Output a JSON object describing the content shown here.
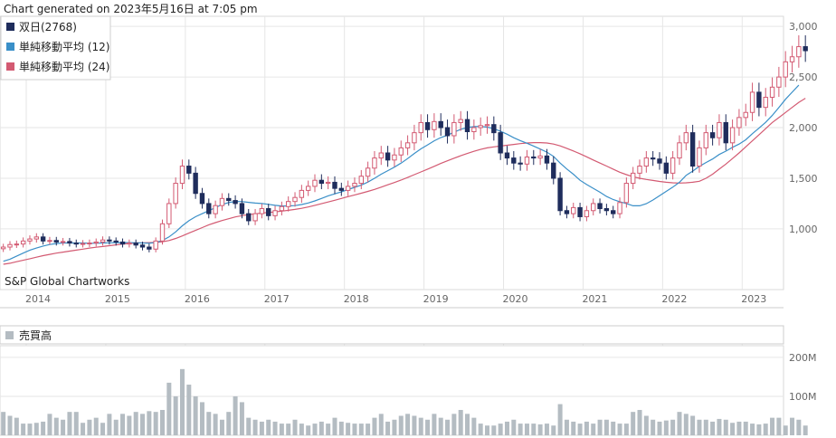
{
  "header": {
    "generated": "Chart generated on 2023年5月16日 at 7:05 pm"
  },
  "chart_data": [
    {
      "type": "candlestick",
      "legend": [
        {
          "label": "双日(2768)",
          "color": "#1f2d5c"
        },
        {
          "label": "単純移動平均 (12)",
          "color": "#3a8fc8"
        },
        {
          "label": "単純移動平均 (24)",
          "color": "#d35a72"
        }
      ],
      "watermark": "S&P Global Chartworks",
      "yticks": [
        1000,
        1500,
        2000,
        2500,
        3000
      ],
      "ytick_labels": [
        "1,000",
        "1,500",
        "2,000",
        "2,500",
        "3,000"
      ],
      "ylim": [
        400,
        3100
      ],
      "x_start": 2013.5,
      "x_end": 2023.35,
      "xtick_values": [
        2014,
        2015,
        2016,
        2017,
        2018,
        2019,
        2020,
        2021,
        2022,
        2023
      ],
      "xtick_labels": [
        "2014",
        "2015",
        "2016",
        "2017",
        "2018",
        "2019",
        "2020",
        "2021",
        "2022",
        "2023"
      ],
      "colors": {
        "up": "#d35a72",
        "down": "#1f2d5c"
      },
      "close_monthly": [
        820,
        845,
        850,
        880,
        900,
        920,
        880,
        885,
        870,
        875,
        860,
        850,
        855,
        860,
        870,
        890,
        880,
        870,
        850,
        860,
        840,
        820,
        800,
        880,
        1050,
        1250,
        1450,
        1620,
        1550,
        1350,
        1250,
        1150,
        1230,
        1300,
        1280,
        1250,
        1150,
        1080,
        1150,
        1200,
        1130,
        1180,
        1220,
        1270,
        1310,
        1380,
        1420,
        1480,
        1450,
        1460,
        1400,
        1380,
        1420,
        1450,
        1520,
        1600,
        1700,
        1750,
        1680,
        1730,
        1800,
        1850,
        1950,
        2050,
        1980,
        2060,
        2000,
        1920,
        2050,
        2080,
        1960,
        2000,
        2020,
        2030,
        1950,
        1750,
        1700,
        1650,
        1640,
        1710,
        1700,
        1720,
        1650,
        1500,
        1180,
        1150,
        1210,
        1120,
        1180,
        1250,
        1200,
        1180,
        1150,
        1260,
        1450,
        1550,
        1620,
        1700,
        1690,
        1650,
        1550,
        1700,
        1850,
        1950,
        1620,
        1800,
        1950,
        1900,
        2050,
        1850,
        2000,
        2100,
        2150,
        2350,
        2200,
        2300,
        2400,
        2500,
        2650,
        2700,
        2800,
        2760
      ],
      "sma12": [
        680,
        700,
        730,
        760,
        790,
        810,
        830,
        845,
        855,
        860,
        860,
        860,
        860,
        858,
        858,
        860,
        862,
        864,
        865,
        864,
        862,
        860,
        858,
        865,
        885,
        920,
        970,
        1030,
        1080,
        1120,
        1150,
        1180,
        1210,
        1240,
        1260,
        1270,
        1270,
        1262,
        1255,
        1250,
        1242,
        1232,
        1226,
        1226,
        1230,
        1240,
        1256,
        1276,
        1300,
        1326,
        1346,
        1366,
        1388,
        1410,
        1432,
        1462,
        1500,
        1540,
        1575,
        1610,
        1650,
        1695,
        1745,
        1790,
        1830,
        1870,
        1902,
        1925,
        1955,
        1983,
        2000,
        2010,
        2012,
        2005,
        1990,
        1964,
        1935,
        1900,
        1872,
        1846,
        1818,
        1788,
        1758,
        1716,
        1650,
        1592,
        1540,
        1480,
        1438,
        1400,
        1362,
        1320,
        1290,
        1268,
        1250,
        1228,
        1228,
        1248,
        1285,
        1328,
        1370,
        1412,
        1460,
        1528,
        1570,
        1618,
        1655,
        1690,
        1735,
        1768,
        1805,
        1838,
        1880,
        1940,
        1995,
        2052,
        2120,
        2200,
        2280,
        2350,
        2420
      ],
      "sma24": [
        650,
        660,
        675,
        690,
        705,
        720,
        735,
        748,
        760,
        770,
        780,
        790,
        800,
        810,
        818,
        826,
        834,
        842,
        850,
        856,
        860,
        862,
        864,
        866,
        872,
        885,
        905,
        930,
        958,
        985,
        1012,
        1040,
        1062,
        1082,
        1100,
        1118,
        1130,
        1140,
        1148,
        1156,
        1162,
        1168,
        1175,
        1183,
        1192,
        1203,
        1216,
        1232,
        1248,
        1265,
        1282,
        1300,
        1318,
        1335,
        1352,
        1370,
        1390,
        1412,
        1435,
        1458,
        1482,
        1508,
        1535,
        1562,
        1590,
        1618,
        1646,
        1672,
        1698,
        1722,
        1745,
        1766,
        1785,
        1800,
        1810,
        1818,
        1826,
        1834,
        1842,
        1848,
        1852,
        1852,
        1848,
        1838,
        1820,
        1796,
        1770,
        1742,
        1712,
        1680,
        1650,
        1620,
        1590,
        1560,
        1535,
        1515,
        1500,
        1488,
        1478,
        1468,
        1460,
        1455,
        1452,
        1455,
        1460,
        1470,
        1500,
        1540,
        1590,
        1640,
        1695,
        1750,
        1810,
        1870,
        1930,
        1990,
        2050,
        2100,
        2150,
        2200,
        2250,
        2290
      ]
    },
    {
      "type": "bar",
      "title": "売買高",
      "legend": [
        {
          "label": "売買高",
          "color": "#b4bcc2"
        }
      ],
      "yticks": [
        100000000,
        200000000
      ],
      "ytick_labels": [
        "100M",
        "200M"
      ],
      "ylim": [
        0,
        230000000
      ],
      "volume_monthly_millions": [
        60,
        50,
        45,
        30,
        30,
        32,
        35,
        55,
        45,
        40,
        60,
        60,
        32,
        40,
        45,
        32,
        55,
        40,
        55,
        50,
        60,
        55,
        62,
        60,
        65,
        135,
        100,
        170,
        130,
        100,
        85,
        60,
        55,
        40,
        60,
        100,
        85,
        45,
        40,
        35,
        40,
        35,
        30,
        30,
        40,
        30,
        25,
        30,
        35,
        30,
        45,
        35,
        32,
        30,
        30,
        30,
        45,
        55,
        35,
        40,
        50,
        55,
        50,
        45,
        40,
        55,
        45,
        40,
        55,
        65,
        55,
        45,
        30,
        25,
        25,
        30,
        35,
        40,
        30,
        30,
        30,
        28,
        30,
        25,
        80,
        40,
        35,
        30,
        35,
        30,
        40,
        40,
        35,
        30,
        30,
        60,
        65,
        50,
        40,
        35,
        38,
        40,
        60,
        55,
        50,
        40,
        40,
        35,
        42,
        40,
        32,
        35,
        35,
        30,
        28,
        30,
        45,
        45,
        25,
        45,
        40,
        25
      ]
    }
  ]
}
